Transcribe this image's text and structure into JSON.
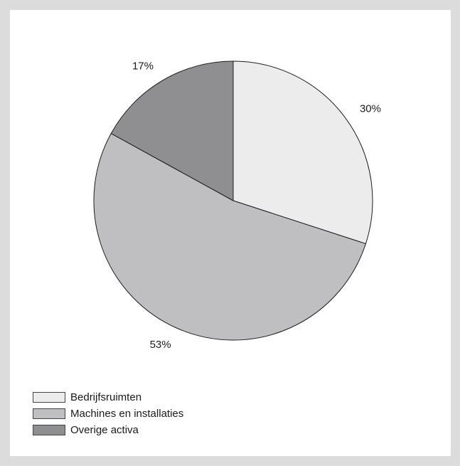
{
  "chart_data": {
    "type": "pie",
    "title": "",
    "categories": [
      "Bedrijfsruimten",
      "Machines en installaties",
      "Overige activa"
    ],
    "values": [
      30,
      53,
      17
    ],
    "value_labels": [
      "30%",
      "53%",
      "17%"
    ],
    "colors": [
      "#ececed",
      "#bfbfc1",
      "#8f8f91"
    ],
    "legend_position": "bottom-left",
    "start_angle": "12 o'clock",
    "direction": "clockwise"
  },
  "legend": {
    "items": [
      {
        "label": "Bedrijfsruimten",
        "color": "#ececed"
      },
      {
        "label": "Machines en installaties",
        "color": "#bfbfc1"
      },
      {
        "label": "Overige activa",
        "color": "#8f8f91"
      }
    ]
  }
}
